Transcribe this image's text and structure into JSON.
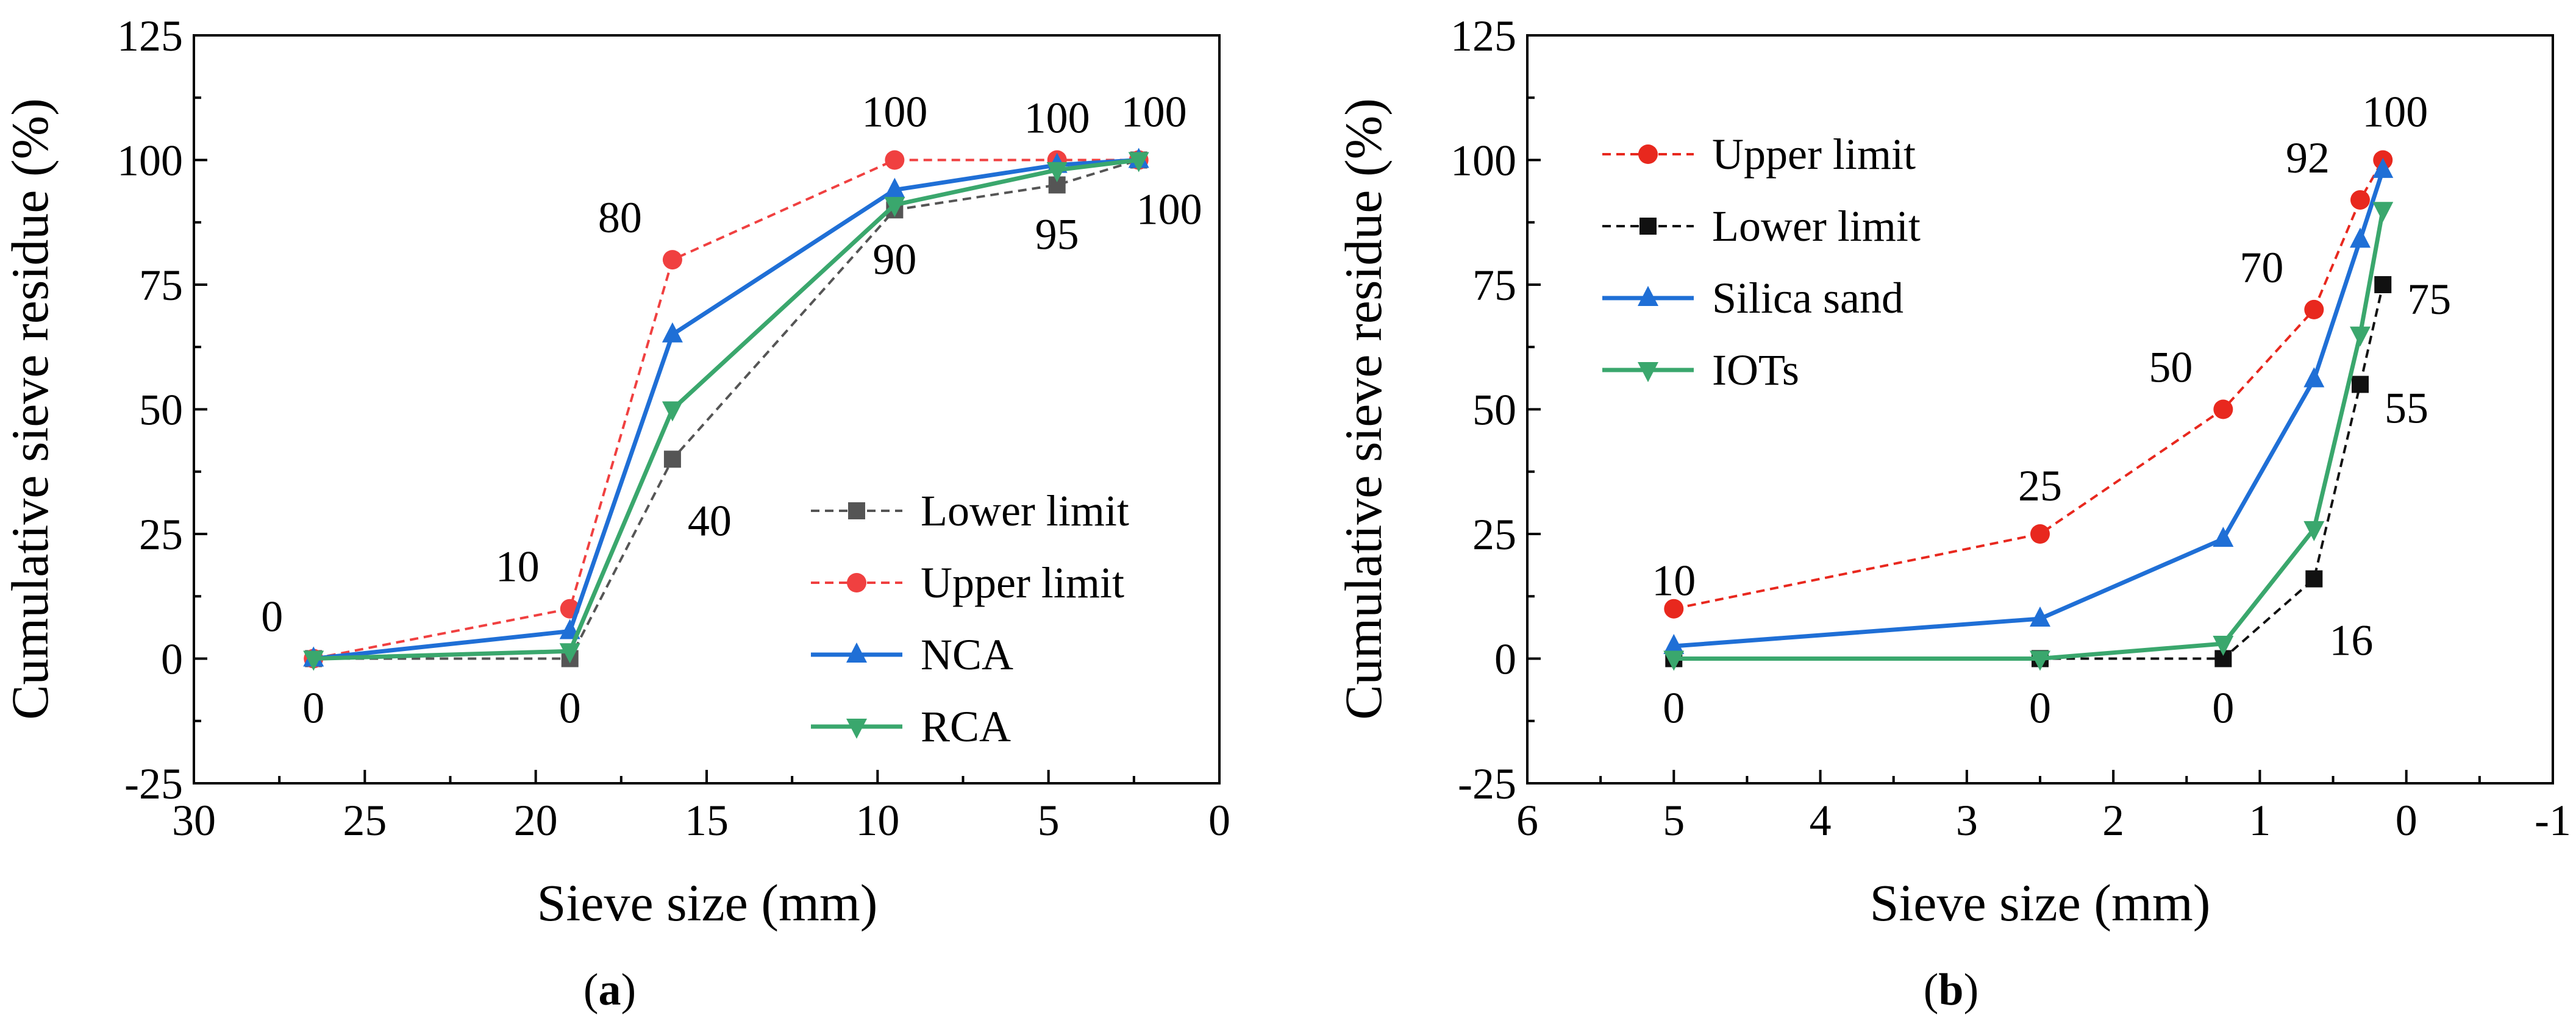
{
  "chart_data": [
    {
      "type": "line",
      "panel_label": "a",
      "xlabel": "Sieve size (mm)",
      "ylabel": "Cumulative sieve residue (%)",
      "xlim": [
        30,
        0
      ],
      "ylim": [
        -25,
        125
      ],
      "x_ticks": [
        30,
        25,
        20,
        15,
        10,
        5,
        0
      ],
      "y_ticks": [
        -25,
        0,
        25,
        50,
        75,
        100,
        125
      ],
      "legend_position": "bottom-right",
      "series": [
        {
          "name": "Lower limit",
          "color": "#555555",
          "style": "dashed",
          "marker": "square",
          "x": [
            26.5,
            19,
            16,
            9.5,
            4.75,
            2.36
          ],
          "y": [
            0,
            0,
            40,
            90,
            95,
            100
          ]
        },
        {
          "name": "Upper limit",
          "color": "#f04040",
          "style": "dashed",
          "marker": "circle",
          "x": [
            26.5,
            19,
            16,
            9.5,
            4.75,
            2.36
          ],
          "y": [
            0,
            10,
            80,
            100,
            100,
            100
          ]
        },
        {
          "name": "NCA",
          "color": "#1f6fd6",
          "style": "solid",
          "marker": "triangle-up",
          "x": [
            26.5,
            19,
            16,
            9.5,
            4.75,
            2.36
          ],
          "y": [
            0,
            5.5,
            65,
            94,
            99,
            100
          ]
        },
        {
          "name": "RCA",
          "color": "#3aa76d",
          "style": "solid",
          "marker": "triangle-down",
          "x": [
            26.5,
            19,
            16,
            9.5,
            4.75,
            2.36
          ],
          "y": [
            0,
            1.5,
            50,
            91,
            98,
            100
          ]
        }
      ],
      "annotations": [
        {
          "text": "0",
          "x": 26.5,
          "y": 0,
          "pos": "above-left"
        },
        {
          "text": "0",
          "x": 26.5,
          "y": 0,
          "pos": "below"
        },
        {
          "text": "10",
          "x": 19,
          "y": 10,
          "pos": "above-left"
        },
        {
          "text": "0",
          "x": 19,
          "y": 0,
          "pos": "below"
        },
        {
          "text": "80",
          "x": 16,
          "y": 80,
          "pos": "above-left"
        },
        {
          "text": "40",
          "x": 16,
          "y": 40,
          "pos": "below-right"
        },
        {
          "text": "100",
          "x": 9.5,
          "y": 100,
          "pos": "above"
        },
        {
          "text": "90",
          "x": 9.5,
          "y": 90,
          "pos": "below"
        },
        {
          "text": "100",
          "x": 4.75,
          "y": 100,
          "pos": "above"
        },
        {
          "text": "95",
          "x": 4.75,
          "y": 95,
          "pos": "below"
        },
        {
          "text": "100",
          "x": 2.36,
          "y": 100,
          "pos": "above"
        },
        {
          "text": "100",
          "x": 2.36,
          "y": 100,
          "pos": "below"
        }
      ]
    },
    {
      "type": "line",
      "panel_label": "b",
      "xlabel": "Sieve size (mm)",
      "ylabel": "Cumulative sieve residue (%)",
      "xlim": [
        6,
        -1
      ],
      "ylim": [
        -25,
        125
      ],
      "x_ticks": [
        6,
        5,
        4,
        3,
        2,
        1,
        0,
        -1
      ],
      "y_ticks": [
        -25,
        0,
        25,
        50,
        75,
        100,
        125
      ],
      "legend_position": "top-left",
      "series": [
        {
          "name": "Upper limit",
          "color": "#e8281e",
          "style": "dashed",
          "marker": "circle",
          "x": [
            5,
            2.5,
            1.25,
            0.63,
            0.315,
            0.16
          ],
          "y": [
            10,
            25,
            50,
            70,
            92,
            100
          ]
        },
        {
          "name": "Lower limit",
          "color": "#111111",
          "style": "dashed",
          "marker": "square",
          "x": [
            5,
            2.5,
            1.25,
            0.63,
            0.315,
            0.16
          ],
          "y": [
            0,
            0,
            0,
            16,
            55,
            75
          ]
        },
        {
          "name": "Silica sand",
          "color": "#1f6fd6",
          "style": "solid",
          "marker": "triangle-up",
          "x": [
            5,
            2.5,
            1.25,
            0.63,
            0.315,
            0.16
          ],
          "y": [
            2.5,
            8,
            24,
            56,
            84,
            98
          ]
        },
        {
          "name": "IOTs",
          "color": "#3aa76d",
          "style": "solid",
          "marker": "triangle-down",
          "x": [
            5,
            2.5,
            1.25,
            0.63,
            0.315,
            0.16
          ],
          "y": [
            0,
            0,
            3,
            26,
            65,
            90
          ]
        }
      ],
      "annotations": [
        {
          "text": "10",
          "x": 5,
          "y": 10,
          "pos": "above"
        },
        {
          "text": "0",
          "x": 5,
          "y": 0,
          "pos": "below"
        },
        {
          "text": "25",
          "x": 2.5,
          "y": 25,
          "pos": "above"
        },
        {
          "text": "0",
          "x": 2.5,
          "y": 0,
          "pos": "below"
        },
        {
          "text": "50",
          "x": 1.25,
          "y": 50,
          "pos": "above-left"
        },
        {
          "text": "0",
          "x": 1.25,
          "y": 0,
          "pos": "below"
        },
        {
          "text": "70",
          "x": 0.63,
          "y": 70,
          "pos": "above-left"
        },
        {
          "text": "16",
          "x": 0.63,
          "y": 16,
          "pos": "below-right"
        },
        {
          "text": "92",
          "x": 0.315,
          "y": 92,
          "pos": "above-left"
        },
        {
          "text": "55",
          "x": 0.315,
          "y": 55,
          "pos": "right"
        },
        {
          "text": "100",
          "x": 0.16,
          "y": 100,
          "pos": "above"
        },
        {
          "text": "75",
          "x": 0.16,
          "y": 75,
          "pos": "right"
        }
      ]
    }
  ]
}
